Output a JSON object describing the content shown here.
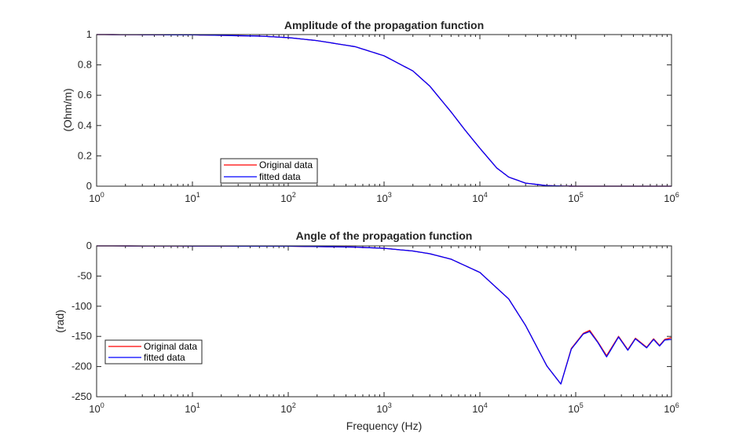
{
  "chart_data": [
    {
      "type": "line",
      "title": "Amplitude of the propagation function",
      "xlabel": "",
      "ylabel": "(Ohm/m)",
      "xscale": "log",
      "xlim": [
        1,
        1000000
      ],
      "ylim": [
        0,
        1
      ],
      "xticks": [
        "10^0",
        "10^1",
        "10^2",
        "10^3",
        "10^4",
        "10^5",
        "10^6"
      ],
      "yticks": [
        "0",
        "0.2",
        "0.4",
        "0.6",
        "0.8",
        "1"
      ],
      "ytick_values": [
        0,
        0.2,
        0.4,
        0.6,
        0.8,
        1
      ],
      "grid": false,
      "legend_position": "bottom-center-left",
      "x": [
        1,
        10,
        50,
        100,
        200,
        500,
        1000,
        2000,
        3000,
        5000,
        7000,
        10000,
        15000,
        20000,
        30000,
        50000,
        70000,
        100000,
        1000000
      ],
      "series": [
        {
          "name": "Original data",
          "color": "#ff0000",
          "values": [
            1.0,
            0.998,
            0.99,
            0.98,
            0.96,
            0.92,
            0.86,
            0.76,
            0.66,
            0.49,
            0.37,
            0.25,
            0.12,
            0.06,
            0.02,
            0.004,
            0.001,
            0.0,
            0.0
          ]
        },
        {
          "name": "fitted data",
          "color": "#0000ff",
          "values": [
            1.0,
            0.998,
            0.99,
            0.98,
            0.96,
            0.92,
            0.86,
            0.76,
            0.66,
            0.49,
            0.37,
            0.25,
            0.12,
            0.06,
            0.02,
            0.004,
            0.001,
            0.0,
            0.0
          ]
        }
      ]
    },
    {
      "type": "line",
      "title": "Angle of the propagation function",
      "xlabel": "Frequency (Hz)",
      "ylabel": "(rad)",
      "xscale": "log",
      "xlim": [
        1,
        1000000
      ],
      "ylim": [
        -250,
        0
      ],
      "xticks": [
        "10^0",
        "10^1",
        "10^2",
        "10^3",
        "10^4",
        "10^5",
        "10^6"
      ],
      "yticks": [
        "-250",
        "-200",
        "-150",
        "-100",
        "-50",
        "0"
      ],
      "ytick_values": [
        -250,
        -200,
        -150,
        -100,
        -50,
        0
      ],
      "grid": false,
      "legend_position": "bottom-left",
      "x": [
        1,
        100,
        500,
        1000,
        2000,
        3000,
        5000,
        10000,
        20000,
        30000,
        50000,
        70000,
        90000,
        120000,
        140000,
        170000,
        210000,
        280000,
        350000,
        420000,
        550000,
        650000,
        750000,
        850000,
        1000000
      ],
      "series": [
        {
          "name": "Original data",
          "color": "#ff0000",
          "values": [
            0,
            -0.5,
            -2,
            -4,
            -8.5,
            -13,
            -22,
            -44,
            -88,
            -132,
            -199,
            -229,
            -170,
            -145,
            -140,
            -159,
            -182,
            -150,
            -172,
            -153,
            -168,
            -154,
            -165,
            -155,
            -152
          ]
        },
        {
          "name": "fitted data",
          "color": "#0000ff",
          "values": [
            0,
            -0.5,
            -2,
            -4,
            -8.5,
            -13,
            -22,
            -44,
            -88,
            -132,
            -199,
            -229,
            -171,
            -146,
            -142,
            -160,
            -184,
            -151,
            -173,
            -154,
            -169,
            -155,
            -166,
            -156,
            -155
          ]
        }
      ]
    }
  ]
}
